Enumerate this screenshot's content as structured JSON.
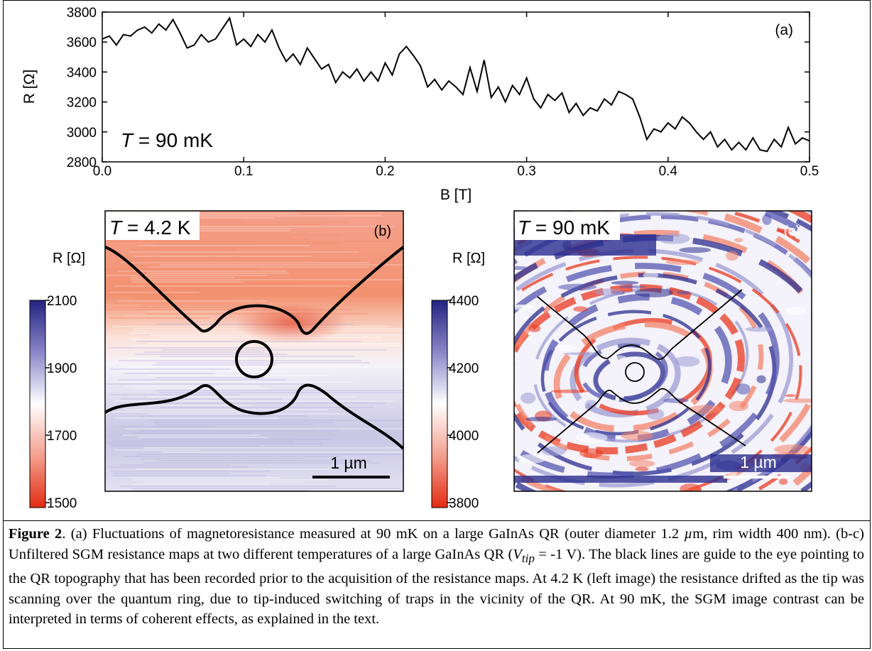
{
  "chart_data": [
    {
      "type": "line",
      "panel_label": "(a)",
      "xlabel": "B [T]",
      "ylabel": "R [Ω]",
      "xlim": [
        0.0,
        0.5
      ],
      "ylim": [
        2800,
        3800
      ],
      "x_ticks": [
        "0.0",
        "0.1",
        "0.2",
        "0.3",
        "0.4",
        "0.5"
      ],
      "y_ticks": [
        "2800",
        "3000",
        "3200",
        "3400",
        "3600",
        "3800"
      ],
      "annotation_T": "T",
      "annotation_value": " = 90 mK",
      "series": [
        {
          "x": [
            0.0,
            0.005,
            0.01,
            0.015,
            0.02,
            0.025,
            0.03,
            0.035,
            0.04,
            0.045,
            0.05,
            0.055,
            0.06,
            0.065,
            0.07,
            0.075,
            0.08,
            0.085,
            0.09,
            0.095,
            0.1,
            0.105,
            0.11,
            0.115,
            0.12,
            0.125,
            0.13,
            0.135,
            0.14,
            0.145,
            0.15,
            0.155,
            0.16,
            0.165,
            0.17,
            0.175,
            0.18,
            0.185,
            0.19,
            0.195,
            0.2,
            0.205,
            0.21,
            0.215,
            0.22,
            0.225,
            0.23,
            0.235,
            0.24,
            0.245,
            0.25,
            0.255,
            0.26,
            0.265,
            0.27,
            0.275,
            0.28,
            0.285,
            0.29,
            0.295,
            0.3,
            0.305,
            0.31,
            0.315,
            0.32,
            0.325,
            0.33,
            0.335,
            0.34,
            0.345,
            0.35,
            0.355,
            0.36,
            0.365,
            0.37,
            0.375,
            0.38,
            0.385,
            0.39,
            0.395,
            0.4,
            0.405,
            0.41,
            0.415,
            0.42,
            0.425,
            0.43,
            0.435,
            0.44,
            0.445,
            0.45,
            0.455,
            0.46,
            0.465,
            0.47,
            0.475,
            0.48,
            0.485,
            0.49,
            0.495,
            0.5
          ],
          "values": [
            3620,
            3640,
            3580,
            3650,
            3640,
            3680,
            3700,
            3660,
            3720,
            3680,
            3750,
            3660,
            3560,
            3580,
            3650,
            3600,
            3620,
            3690,
            3760,
            3580,
            3620,
            3570,
            3650,
            3600,
            3680,
            3560,
            3470,
            3520,
            3450,
            3560,
            3490,
            3420,
            3450,
            3330,
            3400,
            3360,
            3420,
            3340,
            3400,
            3340,
            3460,
            3380,
            3520,
            3570,
            3510,
            3440,
            3300,
            3350,
            3280,
            3340,
            3300,
            3250,
            3430,
            3270,
            3480,
            3230,
            3300,
            3200,
            3310,
            3250,
            3360,
            3220,
            3160,
            3250,
            3210,
            3260,
            3130,
            3190,
            3110,
            3160,
            3140,
            3220,
            3180,
            3270,
            3250,
            3220,
            3100,
            2950,
            3020,
            3000,
            3060,
            3020,
            3100,
            3060,
            3000,
            2950,
            3000,
            2900,
            2950,
            2880,
            2930,
            2880,
            2960,
            2880,
            2870,
            2950,
            2900,
            3030,
            2920,
            2960,
            2940
          ]
        }
      ]
    },
    {
      "type": "heatmap",
      "panel_label": "(b)",
      "annotation_T": "T",
      "annotation_value": " = 4.2 K",
      "colorbar_label": "R [Ω]",
      "colorbar_range": [
        1500,
        2100
      ],
      "colorbar_ticks": [
        "2100",
        "1900",
        "1700",
        "1500"
      ],
      "scalebar_label": "1 µm",
      "colors": {
        "low": "#e8321e",
        "mid": "#ffffff",
        "high": "#2a2a8c"
      }
    },
    {
      "type": "heatmap",
      "panel_label": "(c)",
      "annotation_T": "T",
      "annotation_value": " = 90 mK",
      "colorbar_label": "R [Ω]",
      "colorbar_range": [
        3800,
        4400
      ],
      "colorbar_ticks": [
        "4400",
        "4200",
        "4000",
        "3800"
      ],
      "scalebar_label": "1 µm",
      "colors": {
        "low": "#e8321e",
        "mid": "#ffffff",
        "high": "#2a2a8c"
      }
    }
  ],
  "caption": {
    "lead": "Figure 2",
    "text_1": ". (a) Fluctuations of magnetoresistance measured at 90 mK on a large GaInAs QR (outer diameter 1.2 ",
    "mu": "µ",
    "text_2": "m, rim width 400 nm). (b-c) Unfiltered SGM resistance maps at two different temperatures of a large GaInAs QR (",
    "vtip_V": "V",
    "vtip_sub": "tip",
    "text_3": " = -1 V). The black lines are guide to the eye pointing to the QR topography that has been recorded prior to the acquisition of the resistance maps. At 4.2 K (left image) the resistance drifted as the tip was scanning over the quantum ring, due to tip-induced switching of traps in the vicinity of the QR.  At 90 mK, the SGM image contrast can be interpreted in terms of coherent effects, as explained in the text."
  }
}
